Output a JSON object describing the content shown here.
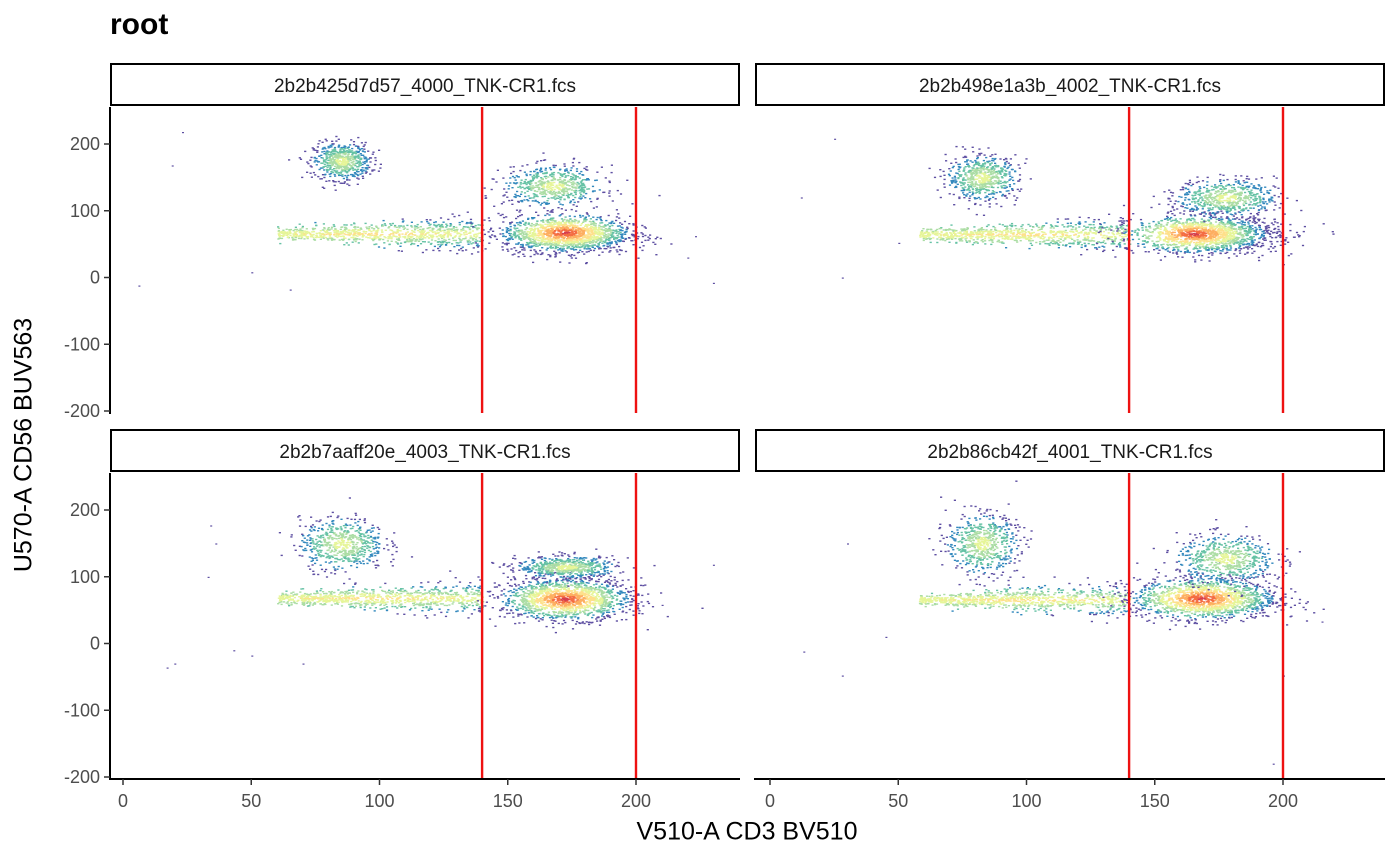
{
  "chart_data": {
    "type": "scatter",
    "title": "root",
    "xlabel": "V510-A CD3 BV510",
    "ylabel": "U570-A CD56 BUV563",
    "xlim": [
      -5,
      240
    ],
    "ylim": [
      -200,
      250
    ],
    "x_ticks": [
      0,
      50,
      100,
      150,
      200
    ],
    "y_ticks": [
      200,
      100,
      0,
      -100,
      -200
    ],
    "gate_lines_x": [
      140,
      200
    ],
    "gate_color": "#ee1111",
    "density_colormap": [
      "#5e4fa2",
      "#3288bd",
      "#66c2a5",
      "#abdda4",
      "#e6f598",
      "#fee08b",
      "#fdae61",
      "#f46d43",
      "#d53e4f"
    ],
    "grid": false,
    "facets": [
      {
        "label": "2b2b425d7d57_4000_TNK-CR1.fcs",
        "clusters": [
          {
            "name": "CD3- CD56 low stream",
            "x": [
              60,
              140
            ],
            "y": [
              62,
              70
            ]
          },
          {
            "name": "CD56 high",
            "x": [
              75,
              95
            ],
            "y": [
              150,
              200
            ]
          },
          {
            "name": "CD3+ main",
            "x": [
              150,
              195
            ],
            "y": [
              40,
              90
            ],
            "peak": [
              172,
              68
            ]
          },
          {
            "name": "CD3+ CD56+",
            "x": [
              150,
              185
            ],
            "y": [
              110,
              165
            ]
          }
        ],
        "outliers": [
          [
            23,
            218
          ],
          [
            19,
            168
          ],
          [
            6,
            -12
          ],
          [
            50,
            8
          ],
          [
            65,
            -18
          ],
          [
            220,
            30
          ],
          [
            223,
            62
          ],
          [
            230,
            -8
          ]
        ]
      },
      {
        "label": "2b2b498e1a3b_4002_TNK-CR1.fcs",
        "clusters": [
          {
            "name": "CD3- CD56 low stream",
            "x": [
              58,
              140
            ],
            "y": [
              60,
              70
            ]
          },
          {
            "name": "CD56 high",
            "x": [
              70,
              95
            ],
            "y": [
              120,
              180
            ]
          },
          {
            "name": "CD3+ main",
            "x": [
              145,
              195
            ],
            "y": [
              40,
              90
            ],
            "peak": [
              165,
              66
            ]
          },
          {
            "name": "CD3+ CD56+",
            "x": [
              160,
              195
            ],
            "y": [
              95,
              145
            ]
          }
        ],
        "outliers": [
          [
            25,
            208
          ],
          [
            28,
            0
          ],
          [
            12,
            120
          ],
          [
            50,
            52
          ],
          [
            200,
            20
          ]
        ]
      },
      {
        "label": "2b2b7aaff20e_4003_TNK-CR1.fcs",
        "clusters": [
          {
            "name": "CD3- CD56 low stream",
            "x": [
              60,
              140
            ],
            "y": [
              62,
              75
            ]
          },
          {
            "name": "CD56 high",
            "x": [
              70,
              100
            ],
            "y": [
              115,
              185
            ]
          },
          {
            "name": "CD3+ main",
            "x": [
              150,
              195
            ],
            "y": [
              40,
              95
            ],
            "peak": [
              172,
              67
            ]
          },
          {
            "name": "CD3+ CD56+",
            "x": [
              155,
              190
            ],
            "y": [
              100,
              130
            ]
          }
        ],
        "outliers": [
          [
            34,
            177
          ],
          [
            36,
            150
          ],
          [
            33,
            100
          ],
          [
            17,
            -36
          ],
          [
            20,
            -30
          ],
          [
            43,
            -10
          ],
          [
            50,
            -18
          ],
          [
            70,
            -30
          ],
          [
            210,
            58
          ],
          [
            230,
            118
          ]
        ]
      },
      {
        "label": "2b2b86cb42f_4001_TNK-CR1.fcs",
        "clusters": [
          {
            "name": "CD3- CD56 low stream",
            "x": [
              58,
              140
            ],
            "y": [
              60,
              72
            ]
          },
          {
            "name": "CD56 high",
            "x": [
              70,
              95
            ],
            "y": [
              110,
              190
            ]
          },
          {
            "name": "CD3+ main",
            "x": [
              145,
              195
            ],
            "y": [
              40,
              95
            ],
            "peak": [
              168,
              68
            ]
          },
          {
            "name": "CD3+ CD56+",
            "x": [
              160,
              195
            ],
            "y": [
              95,
              160
            ]
          }
        ],
        "outliers": [
          [
            13,
            -12
          ],
          [
            28,
            -48
          ],
          [
            30,
            150
          ],
          [
            45,
            10
          ],
          [
            200,
            -48
          ],
          [
            196,
            -180
          ],
          [
            215,
            33
          ]
        ]
      }
    ]
  }
}
